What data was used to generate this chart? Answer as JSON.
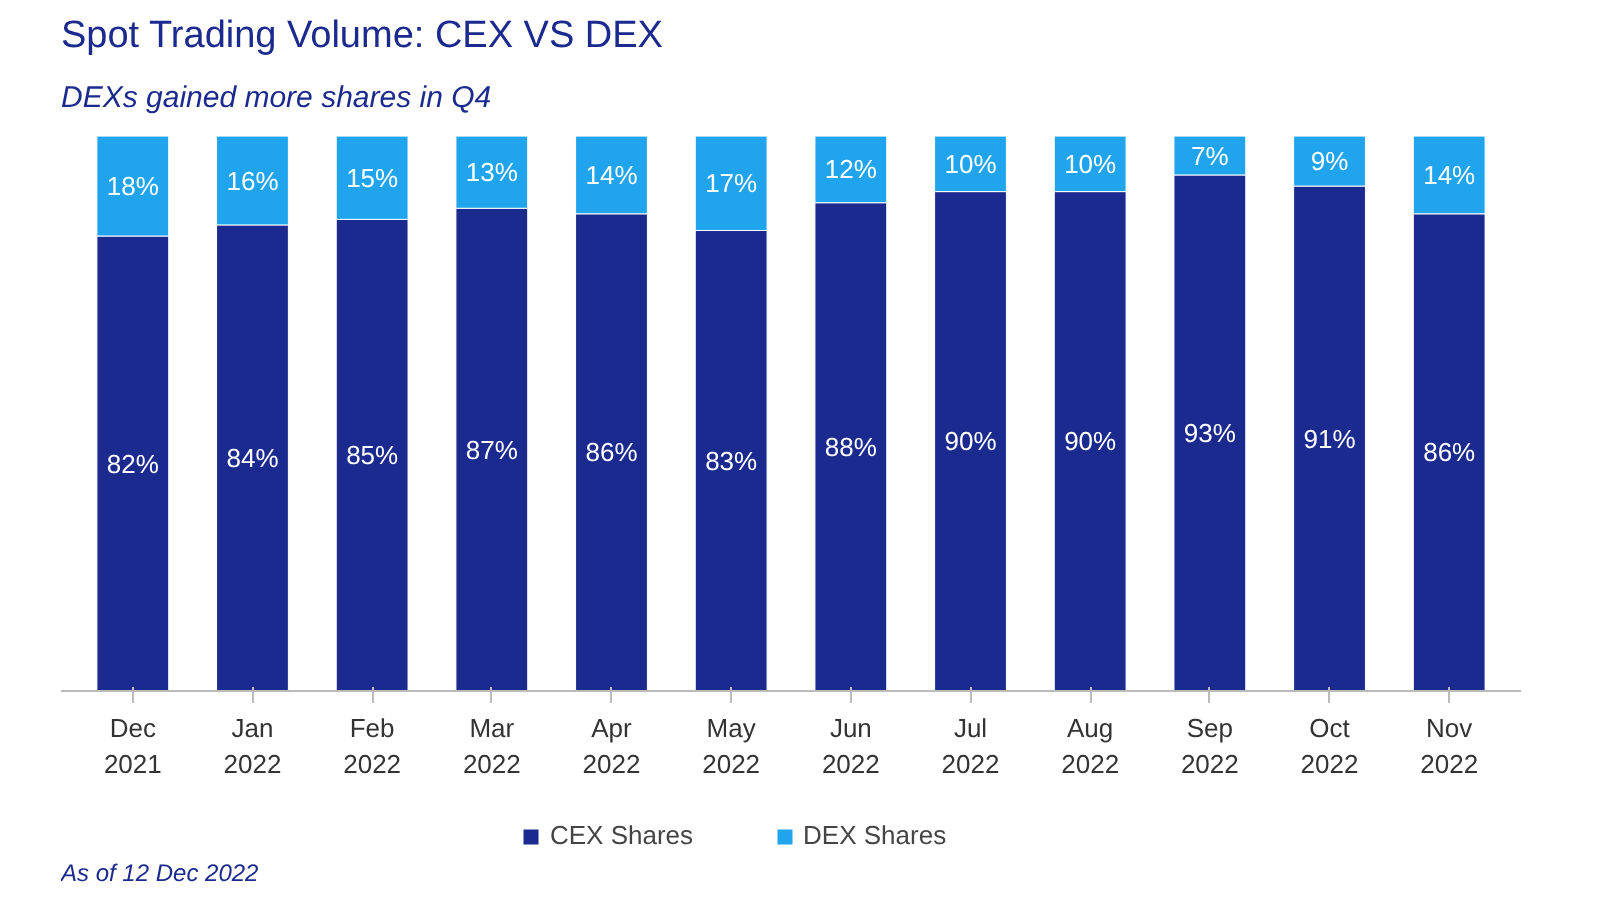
{
  "chart_data": {
    "type": "bar",
    "stacked": true,
    "title": "Spot Trading Volume: CEX VS DEX",
    "subtitle": "DEXs gained more shares in Q4",
    "categories": [
      "Dec\n2021",
      "Jan\n2022",
      "Feb\n2022",
      "Mar\n2022",
      "Apr\n2022",
      "May\n2022",
      "Jun\n2022",
      "Jul\n2022",
      "Aug\n2022",
      "Sep\n2022",
      "Oct\n2022",
      "Nov\n2022"
    ],
    "series": [
      {
        "name": "CEX Shares",
        "color": "#1b2a8e",
        "values": [
          82,
          84,
          85,
          87,
          86,
          83,
          88,
          90,
          90,
          93,
          91,
          86
        ],
        "value_labels": [
          "82%",
          "84%",
          "85%",
          "87%",
          "86%",
          "83%",
          "88%",
          "90%",
          "90%",
          "93%",
          "91%",
          "86%"
        ]
      },
      {
        "name": "DEX Shares",
        "color": "#20a4ee",
        "values": [
          18,
          16,
          15,
          13,
          14,
          17,
          12,
          10,
          10,
          7,
          9,
          14
        ],
        "value_labels": [
          "18%",
          "16%",
          "15%",
          "13%",
          "14%",
          "17%",
          "12%",
          "10%",
          "10%",
          "7%",
          "9%",
          "14%"
        ]
      }
    ],
    "legend": "bottom",
    "annotations": [
      "As of 12 Dec 2022"
    ]
  }
}
